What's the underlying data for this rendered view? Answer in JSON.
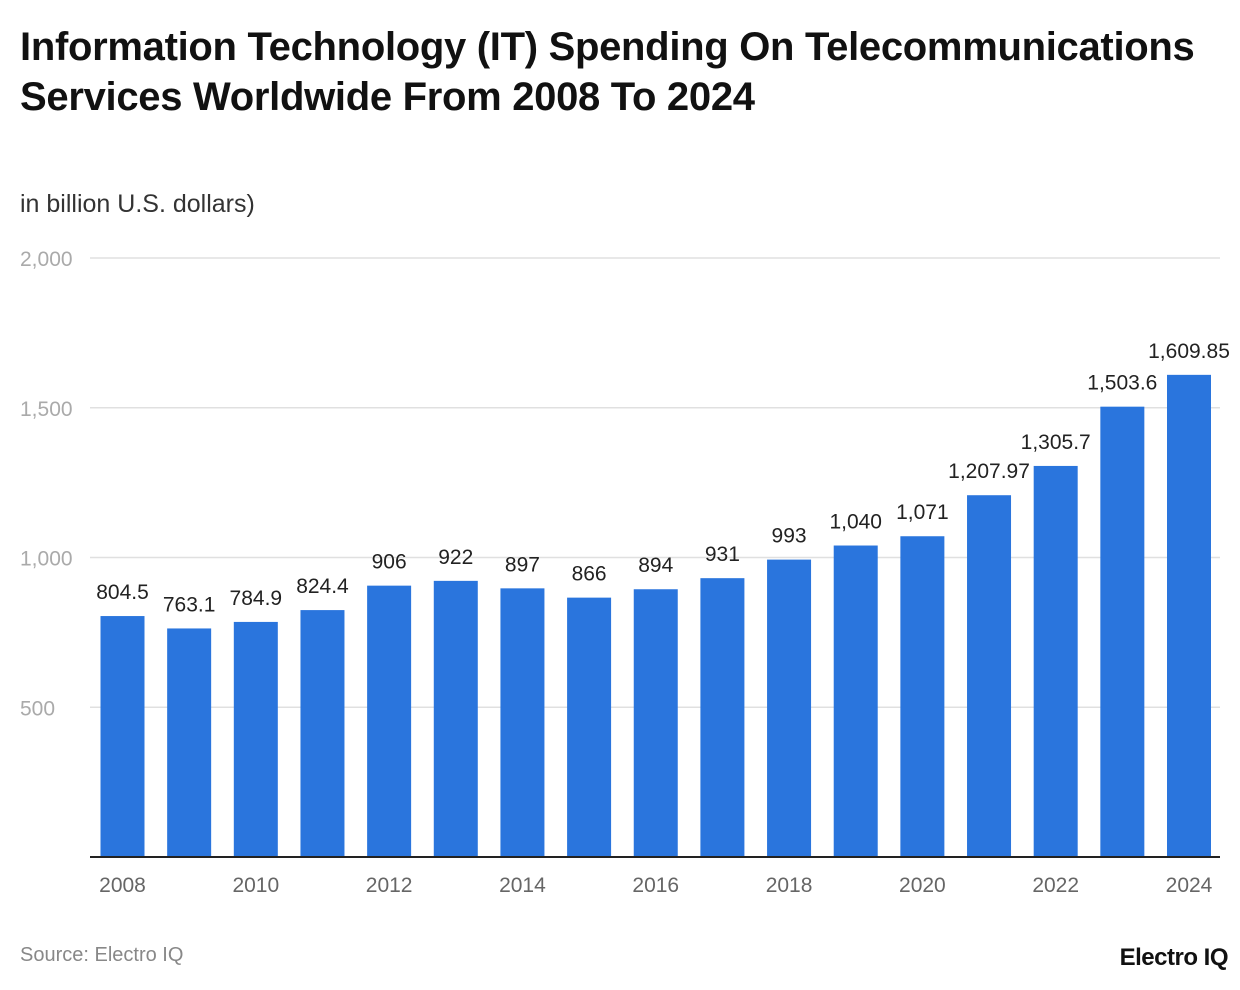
{
  "title": "Information Technology (IT) Spending On Telecommunications Services Worldwide From 2008 To 2024",
  "subtitle": "in billion U.S. dollars)",
  "source": "Source: Electro IQ",
  "logo": "Electro IQ",
  "colors": {
    "bar": "#2a75dd",
    "grid": "#e0e0e0",
    "axis": "#222222"
  },
  "chart_data": {
    "type": "bar",
    "categories": [
      "2008",
      "2009",
      "2010",
      "2011",
      "2012",
      "2013",
      "2014",
      "2015",
      "2016",
      "2017",
      "2018",
      "2019",
      "2020",
      "2021",
      "2022",
      "2023",
      "2024"
    ],
    "values": [
      804.5,
      763.1,
      784.9,
      824.4,
      906,
      922,
      897,
      866,
      894,
      931,
      993,
      1040,
      1071,
      1207.97,
      1305.7,
      1503.6,
      1609.85
    ],
    "data_labels": [
      "804.5",
      "763.1",
      "784.9",
      "824.4",
      "906",
      "922",
      "897",
      "866",
      "894",
      "931",
      "993",
      "1,040",
      "1,071",
      "1,207.97",
      "1,305.7",
      "1,503.6",
      "1,609.85"
    ],
    "x_tick_labels": [
      "2008",
      "2010",
      "2012",
      "2014",
      "2016",
      "2018",
      "2020",
      "2022",
      "2024"
    ],
    "y_ticks": [
      500,
      1000,
      1500,
      2000
    ],
    "y_tick_labels": [
      "500",
      "1,000",
      "1,500",
      "2,000"
    ],
    "ylim": [
      0,
      2000
    ],
    "grid": true,
    "xlabel": "",
    "ylabel": ""
  }
}
